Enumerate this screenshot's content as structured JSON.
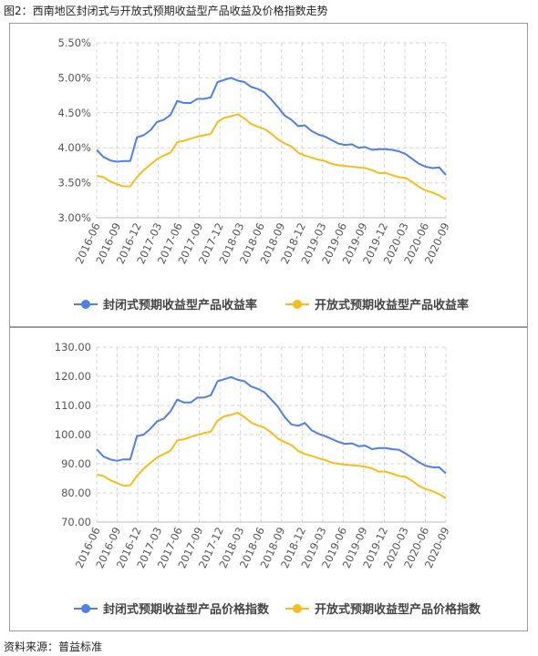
{
  "title": "图2：西南地区封闭式与开放式预期收益型产品收益及价格指数走势",
  "source": "资料来源：普益标准",
  "colors": {
    "series_a": "#4f7fe9",
    "series_b": "#f7bd1c",
    "grid": "#d6d6d6",
    "axis_text": "#555555"
  },
  "chart_data": [
    {
      "type": "line",
      "title": "",
      "xlabel": "",
      "ylabel": "",
      "ylim": [
        3.0,
        5.5
      ],
      "yticks": [
        "3.00%",
        "3.50%",
        "4.00%",
        "4.50%",
        "5.00%",
        "5.50%"
      ],
      "ytick_values": [
        3.0,
        3.5,
        4.0,
        4.5,
        5.0,
        5.5
      ],
      "x_tick_labels": [
        "2016-06",
        "2016-09",
        "2016-12",
        "2017-03",
        "2017-06",
        "2017-09",
        "2017-12",
        "2018-03",
        "2018-06",
        "2018-09",
        "2018-12",
        "2019-03",
        "2019-06",
        "2019-09",
        "2019-12",
        "2020-03",
        "2020-06",
        "2020-09"
      ],
      "grid": true,
      "legend_position": "bottom-center",
      "series": [
        {
          "name": "封闭式预期收益型产品收益率",
          "values": [
            3.97,
            3.87,
            3.82,
            3.8,
            3.81,
            3.81,
            4.15,
            4.18,
            4.25,
            4.37,
            4.4,
            4.47,
            4.67,
            4.64,
            4.64,
            4.7,
            4.7,
            4.72,
            4.94,
            4.97,
            5.0,
            4.96,
            4.94,
            4.87,
            4.84,
            4.79,
            4.69,
            4.58,
            4.46,
            4.4,
            4.31,
            4.32,
            4.24,
            4.19,
            4.16,
            4.11,
            4.06,
            4.04,
            4.05,
            4.0,
            4.01,
            3.97,
            3.98,
            3.98,
            3.97,
            3.95,
            3.91,
            3.84,
            3.77,
            3.73,
            3.71,
            3.72,
            3.61
          ]
        },
        {
          "name": "开放式预期收益型产品收益率",
          "values": [
            3.6,
            3.58,
            3.52,
            3.48,
            3.45,
            3.45,
            3.58,
            3.68,
            3.76,
            3.84,
            3.89,
            3.93,
            4.08,
            4.1,
            4.13,
            4.16,
            4.18,
            4.2,
            4.37,
            4.43,
            4.45,
            4.48,
            4.42,
            4.34,
            4.3,
            4.27,
            4.2,
            4.12,
            4.06,
            4.02,
            3.93,
            3.89,
            3.86,
            3.83,
            3.81,
            3.77,
            3.75,
            3.74,
            3.73,
            3.72,
            3.71,
            3.68,
            3.64,
            3.64,
            3.61,
            3.58,
            3.57,
            3.51,
            3.44,
            3.39,
            3.36,
            3.32,
            3.26
          ]
        }
      ]
    },
    {
      "type": "line",
      "title": "",
      "xlabel": "",
      "ylabel": "",
      "ylim": [
        70,
        130
      ],
      "yticks": [
        "70.00",
        "80.00",
        "90.00",
        "100.00",
        "110.00",
        "120.00",
        "130.00"
      ],
      "ytick_values": [
        70,
        80,
        90,
        100,
        110,
        120,
        130
      ],
      "x_tick_labels": [
        "2016-06",
        "2016-09",
        "2016-12",
        "2017-03",
        "2017-06",
        "2017-09",
        "2017-12",
        "2018-03",
        "2018-06",
        "2018-09",
        "2018-12",
        "2019-03",
        "2019-06",
        "2019-09",
        "2019-12",
        "2020-03",
        "2020-06",
        "2020-09"
      ],
      "grid": true,
      "legend_position": "bottom-center",
      "series": [
        {
          "name": "封闭式预期收益型产品价格指数",
          "values": [
            95.0,
            92.5,
            91.5,
            91.0,
            91.5,
            91.5,
            99.5,
            100.0,
            102.0,
            104.5,
            105.5,
            108.0,
            112.0,
            111.0,
            111.0,
            112.7,
            112.7,
            113.5,
            118.3,
            119.0,
            119.7,
            118.8,
            118.3,
            116.5,
            115.7,
            114.5,
            112.0,
            109.5,
            106.0,
            103.5,
            103.0,
            104.0,
            101.5,
            100.3,
            99.5,
            98.5,
            97.5,
            96.8,
            97.0,
            96.0,
            96.2,
            95.0,
            95.4,
            95.4,
            95.0,
            94.8,
            93.5,
            92.0,
            90.5,
            89.3,
            88.8,
            88.8,
            86.7
          ]
        },
        {
          "name": "开放式预期收益型产品价格指数",
          "values": [
            86.3,
            85.8,
            84.4,
            83.4,
            82.5,
            82.6,
            85.8,
            88.3,
            90.3,
            92.2,
            93.3,
            94.5,
            98.0,
            98.4,
            99.2,
            99.9,
            100.5,
            101.0,
            104.8,
            106.3,
            106.8,
            107.5,
            106.0,
            104.1,
            103.1,
            102.4,
            100.7,
            98.6,
            97.4,
            96.4,
            94.4,
            93.3,
            92.7,
            91.9,
            91.3,
            90.4,
            90.0,
            89.7,
            89.5,
            89.3,
            89.0,
            88.4,
            87.3,
            87.3,
            86.6,
            85.8,
            85.5,
            84.1,
            82.4,
            81.3,
            80.6,
            79.6,
            78.1
          ]
        }
      ]
    }
  ]
}
